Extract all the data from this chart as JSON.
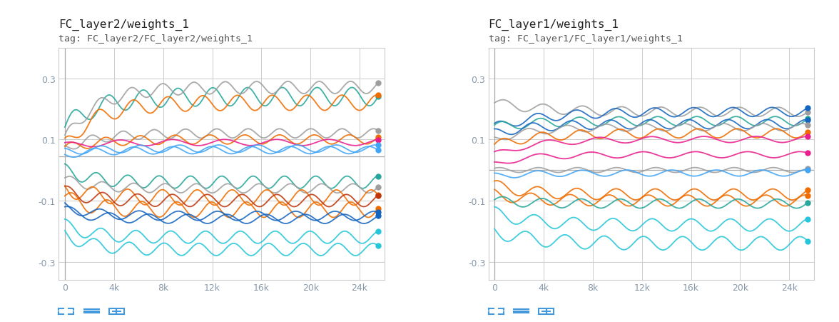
{
  "title1": "FC_layer2/weights_1",
  "subtitle1": "tag: FC_layer2/FC_layer2/weights_1",
  "title2": "FC_layer1/weights_1",
  "subtitle2": "tag: FC_layer1/FC_layer1/weights_1",
  "xlim": [
    -500,
    26000
  ],
  "xlim2": [
    -500,
    26000
  ],
  "xticks": [
    0,
    4000,
    8000,
    12000,
    16000,
    20000,
    24000
  ],
  "xticklabels": [
    "0",
    "4k",
    "8k",
    "12k",
    "16k",
    "20k",
    "24k"
  ],
  "ylim": [
    -0.36,
    0.4
  ],
  "yticks": [
    -0.3,
    -0.1,
    0.1,
    0.3
  ],
  "yticklabels": [
    "-0.3",
    "-0.1",
    "0.1",
    "0.3"
  ],
  "bg_color": "#ffffff",
  "grid_color": "#cccccc",
  "title_fontsize": 11.5,
  "subtitle_fontsize": 9.5,
  "tick_color": "#8899aa",
  "tick_fontsize": 9,
  "hline1_y": 0.045,
  "hline2_y": 0.0,
  "icon_color": "#4499dd"
}
